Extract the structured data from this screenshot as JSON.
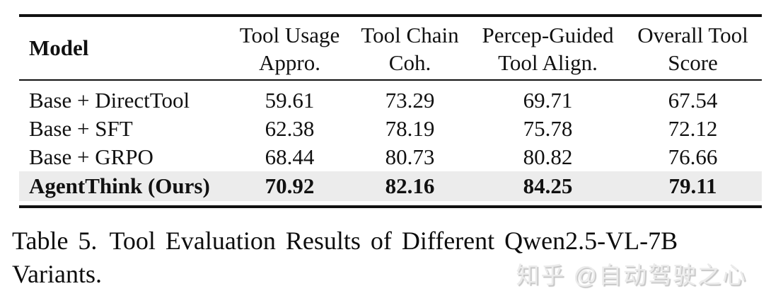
{
  "table": {
    "header": {
      "model_label": "Model",
      "columns": [
        {
          "line1": "Tool Usage",
          "line2": "Appro."
        },
        {
          "line1": "Tool Chain",
          "line2": "Coh."
        },
        {
          "line1": "Percep-Guided",
          "line2": "Tool Align."
        },
        {
          "line1": "Overall Tool",
          "line2": "Score"
        }
      ]
    },
    "rows": [
      {
        "model": "Base + DirectTool",
        "values": [
          "59.61",
          "73.29",
          "69.71",
          "67.54"
        ],
        "highlight": false
      },
      {
        "model": "Base + SFT",
        "values": [
          "62.38",
          "78.19",
          "75.78",
          "72.12"
        ],
        "highlight": false
      },
      {
        "model": "Base + GRPO",
        "values": [
          "68.44",
          "80.73",
          "80.82",
          "76.66"
        ],
        "highlight": false
      },
      {
        "model": "AgentThink (Ours)",
        "values": [
          "70.92",
          "82.16",
          "84.25",
          "79.11"
        ],
        "highlight": true
      }
    ],
    "rule_color": "#111111",
    "highlight_color": "#ececec"
  },
  "caption": {
    "label": "Table 5.",
    "line1": "Tool Evaluation Results of Different Qwen2.5-VL-7B",
    "line2": "Variants."
  },
  "watermark": {
    "text": "知乎 @自动驾驶之心",
    "color": "#ebebeb"
  }
}
